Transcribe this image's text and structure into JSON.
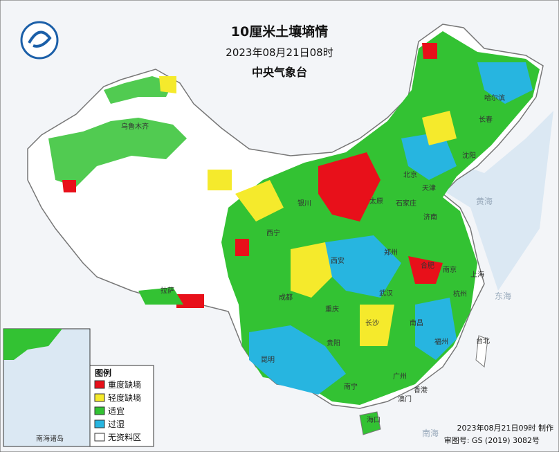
{
  "header": {
    "title": "10厘米土壤墒情",
    "time": "2023年08月21日08时",
    "agency": "中央气象台"
  },
  "legend": {
    "title": "图例",
    "items": [
      "重度缺墒",
      "轻度缺墒",
      "适宜",
      "过湿",
      "无资料区"
    ]
  },
  "cities": [
    "乌鲁木齐",
    "拉萨",
    "西宁",
    "银川",
    "西安",
    "成都",
    "重庆",
    "昆明",
    "贵阳",
    "南宁",
    "广州",
    "香港",
    "澳门",
    "海口",
    "长沙",
    "武汉",
    "南昌",
    "福州",
    "台北",
    "杭州",
    "上海",
    "南京",
    "合肥",
    "郑州",
    "济南",
    "石家庄",
    "太原",
    "北京",
    "天津",
    "沈阳",
    "长春",
    "哈尔滨"
  ],
  "seas": [
    "黄海",
    "东海",
    "南海"
  ],
  "inset": {
    "label": "南海诸岛"
  },
  "footer": {
    "made": "2023年08月21日09时 制作",
    "approval": "审图号: GS (2019) 3082号"
  }
}
